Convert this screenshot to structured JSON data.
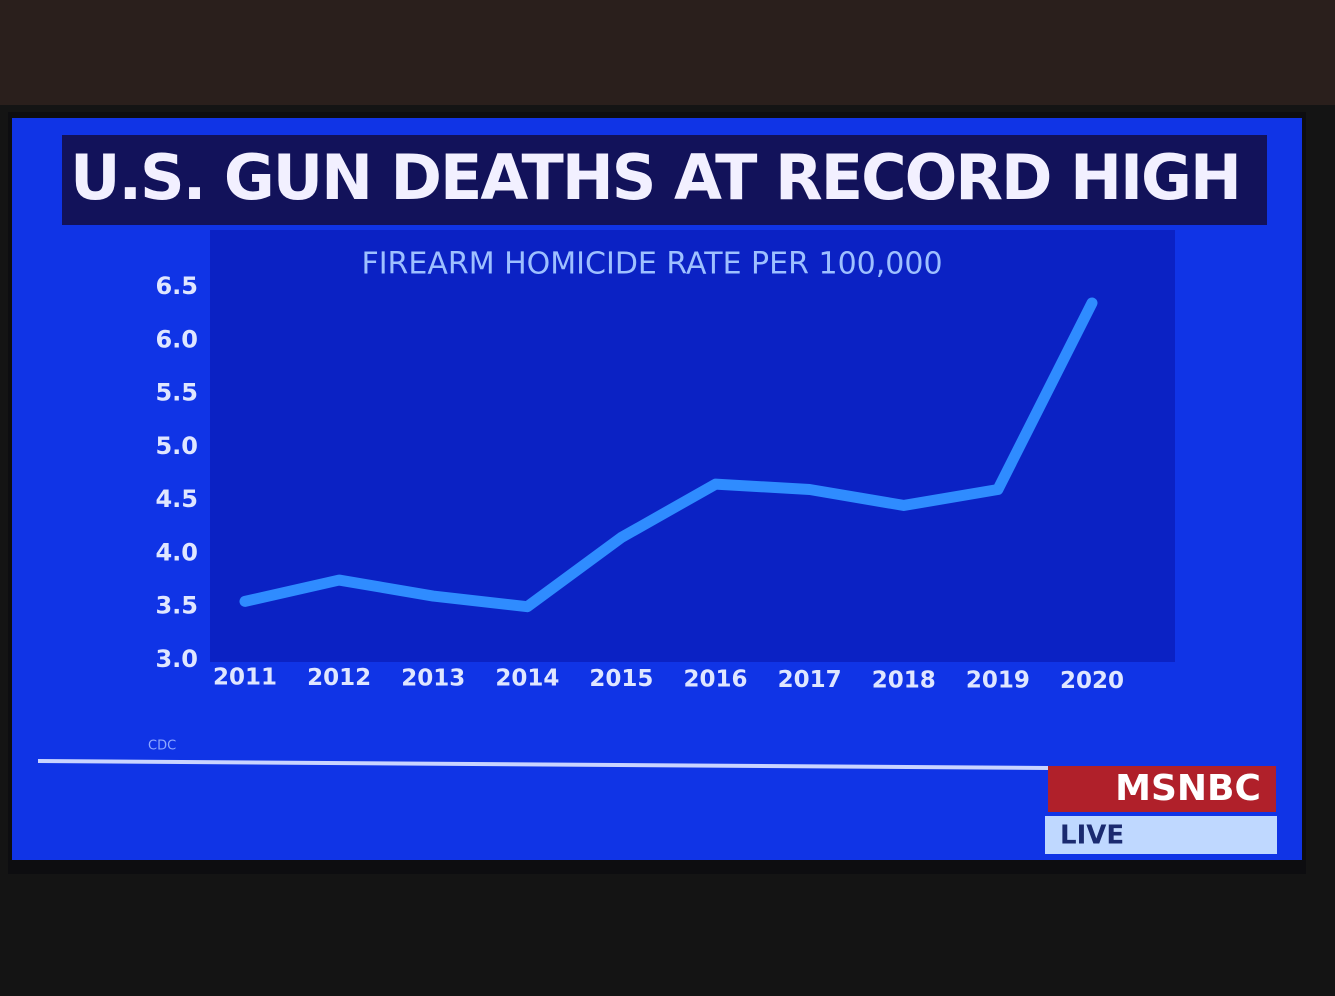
{
  "chart_data": {
    "type": "line",
    "title": "U.S. GUN DEATHS AT RECORD HIGH",
    "subtitle": "FIREARM HOMICIDE RATE PER 100,000",
    "categories": [
      "2011",
      "2012",
      "2013",
      "2014",
      "2015",
      "2016",
      "2017",
      "2018",
      "2019",
      "2020"
    ],
    "values": [
      3.55,
      3.75,
      3.6,
      3.5,
      4.15,
      4.65,
      4.6,
      4.45,
      4.6,
      6.35
    ],
    "color": "#2f8cff",
    "ylim": [
      3,
      6.5
    ],
    "yticks": [
      {
        "value": 3,
        "label": "3.0"
      },
      3.5,
      {
        "value": 4,
        "label": "4.0"
      },
      4.5,
      {
        "value": 5,
        "label": "5.0"
      },
      5.5,
      {
        "value": 6,
        "label": "6.0"
      },
      6.5
    ],
    "grid": false,
    "source": "CDC",
    "network": "MSNBC",
    "live": "LIVE"
  }
}
